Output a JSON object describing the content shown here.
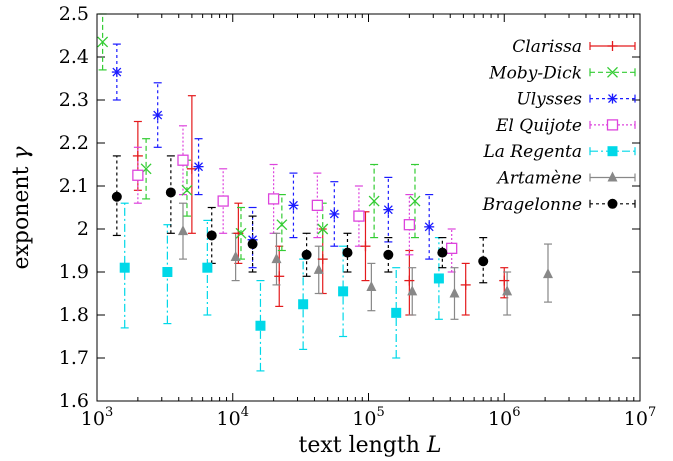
{
  "chart_data": {
    "type": "scatter",
    "x_scale": "log",
    "xlabel": "text length L",
    "ylabel": "exponent γ",
    "xlim": [
      1000,
      10000000
    ],
    "ylim": [
      1.6,
      2.5
    ],
    "y_ticks": [
      "1.6",
      "1.7",
      "1.8",
      "1.9",
      "2",
      "2.1",
      "2.2",
      "2.3",
      "2.4",
      "2.5"
    ],
    "x_ticks": [
      {
        "base": "10",
        "exp": "3"
      },
      {
        "base": "10",
        "exp": "4"
      },
      {
        "base": "10",
        "exp": "5"
      },
      {
        "base": "10",
        "exp": "6"
      },
      {
        "base": "10",
        "exp": "7"
      }
    ],
    "legend_position": "top-right",
    "series": [
      {
        "name": "Clarissa",
        "color": "#e41a1c",
        "marker": "plus",
        "dash": "",
        "points": [
          {
            "x": 2000,
            "y": 2.17,
            "lo": 2.09,
            "hi": 2.25
          },
          {
            "x": 5000,
            "y": 2.14,
            "lo": 1.99,
            "hi": 2.31
          },
          {
            "x": 11000,
            "y": 1.99,
            "lo": 1.92,
            "hi": 2.06
          },
          {
            "x": 22000,
            "y": 1.89,
            "lo": 1.82,
            "hi": 1.96
          },
          {
            "x": 46000,
            "y": 1.93,
            "lo": 1.85,
            "hi": 2.0
          },
          {
            "x": 95000,
            "y": 1.96,
            "lo": 1.88,
            "hi": 2.04
          },
          {
            "x": 200000,
            "y": 1.88,
            "lo": 1.8,
            "hi": 1.95
          },
          {
            "x": 520000,
            "y": 1.87,
            "lo": 1.8,
            "hi": 1.92
          },
          {
            "x": 1000000,
            "y": 1.88,
            "lo": 1.84,
            "hi": 1.91
          }
        ]
      },
      {
        "name": "Moby-Dick",
        "color": "#33cc33",
        "marker": "cross",
        "dash": "5,3",
        "points": [
          {
            "x": 1100,
            "y": 2.435,
            "lo": 2.37,
            "hi": 2.5
          },
          {
            "x": 2300,
            "y": 2.14,
            "lo": 2.07,
            "hi": 2.21
          },
          {
            "x": 4600,
            "y": 2.09,
            "lo": 2.03,
            "hi": 2.16
          },
          {
            "x": 11500,
            "y": 1.99,
            "lo": 1.93,
            "hi": 2.05
          },
          {
            "x": 23000,
            "y": 2.01,
            "lo": 1.95,
            "hi": 2.08
          },
          {
            "x": 46000,
            "y": 2.0,
            "lo": 1.93,
            "hi": 2.06
          },
          {
            "x": 110000,
            "y": 2.065,
            "lo": 1.98,
            "hi": 2.15
          },
          {
            "x": 220000,
            "y": 2.065,
            "lo": 1.98,
            "hi": 2.15
          }
        ]
      },
      {
        "name": "Ulysses",
        "color": "#1a1aff",
        "marker": "star",
        "dash": "3,3",
        "points": [
          {
            "x": 1400,
            "y": 2.365,
            "lo": 2.3,
            "hi": 2.43
          },
          {
            "x": 2800,
            "y": 2.265,
            "lo": 2.19,
            "hi": 2.34
          },
          {
            "x": 5600,
            "y": 2.145,
            "lo": 2.08,
            "hi": 2.21
          },
          {
            "x": 14000,
            "y": 1.975,
            "lo": 1.91,
            "hi": 2.05
          },
          {
            "x": 28000,
            "y": 2.055,
            "lo": 1.98,
            "hi": 2.13
          },
          {
            "x": 56000,
            "y": 2.035,
            "lo": 1.96,
            "hi": 2.11
          },
          {
            "x": 140000,
            "y": 2.045,
            "lo": 1.97,
            "hi": 2.12
          },
          {
            "x": 280000,
            "y": 2.005,
            "lo": 1.93,
            "hi": 2.08
          }
        ]
      },
      {
        "name": "El Quijote",
        "color": "#dd44dd",
        "marker": "square-open",
        "dash": "2,2",
        "points": [
          {
            "x": 2000,
            "y": 2.125,
            "lo": 2.06,
            "hi": 2.19
          },
          {
            "x": 4300,
            "y": 2.16,
            "lo": 2.08,
            "hi": 2.24
          },
          {
            "x": 8500,
            "y": 2.065,
            "lo": 1.99,
            "hi": 2.14
          },
          {
            "x": 20000,
            "y": 2.07,
            "lo": 1.99,
            "hi": 2.15
          },
          {
            "x": 42000,
            "y": 2.055,
            "lo": 1.98,
            "hi": 2.13
          },
          {
            "x": 85000,
            "y": 2.03,
            "lo": 1.96,
            "hi": 2.1
          },
          {
            "x": 200000,
            "y": 2.01,
            "lo": 1.94,
            "hi": 2.08
          },
          {
            "x": 410000,
            "y": 1.955,
            "lo": 1.9,
            "hi": 2.0
          }
        ]
      },
      {
        "name": "La Regenta",
        "color": "#00d8e8",
        "marker": "square-filled",
        "dash": "8,3,2,3",
        "points": [
          {
            "x": 1600,
            "y": 1.91,
            "lo": 1.77,
            "hi": 2.06
          },
          {
            "x": 3300,
            "y": 1.9,
            "lo": 1.78,
            "hi": 2.01
          },
          {
            "x": 6500,
            "y": 1.91,
            "lo": 1.8,
            "hi": 2.02
          },
          {
            "x": 16000,
            "y": 1.775,
            "lo": 1.67,
            "hi": 1.88
          },
          {
            "x": 33000,
            "y": 1.825,
            "lo": 1.72,
            "hi": 1.93
          },
          {
            "x": 65000,
            "y": 1.855,
            "lo": 1.75,
            "hi": 1.96
          },
          {
            "x": 160000,
            "y": 1.805,
            "lo": 1.7,
            "hi": 1.91
          },
          {
            "x": 330000,
            "y": 1.885,
            "lo": 1.79,
            "hi": 1.98
          }
        ]
      },
      {
        "name": "Artamène",
        "color": "#888888",
        "marker": "triangle",
        "dash": "",
        "points": [
          {
            "x": 4300,
            "y": 1.995,
            "lo": 1.93,
            "hi": 2.06
          },
          {
            "x": 10500,
            "y": 1.935,
            "lo": 1.88,
            "hi": 1.99
          },
          {
            "x": 21000,
            "y": 1.93,
            "lo": 1.87,
            "hi": 1.99
          },
          {
            "x": 43000,
            "y": 1.905,
            "lo": 1.85,
            "hi": 1.96
          },
          {
            "x": 105000,
            "y": 1.865,
            "lo": 1.81,
            "hi": 1.92
          },
          {
            "x": 210000,
            "y": 1.855,
            "lo": 1.8,
            "hi": 1.91
          },
          {
            "x": 430000,
            "y": 1.85,
            "lo": 1.79,
            "hi": 1.91
          },
          {
            "x": 1050000,
            "y": 1.855,
            "lo": 1.8,
            "hi": 1.9
          },
          {
            "x": 2100000,
            "y": 1.895,
            "lo": 1.83,
            "hi": 1.965
          }
        ]
      },
      {
        "name": "Bragelonne",
        "color": "#000000",
        "marker": "circle",
        "dash": "3,3",
        "points": [
          {
            "x": 1400,
            "y": 2.075,
            "lo": 1.985,
            "hi": 2.17
          },
          {
            "x": 3500,
            "y": 2.085,
            "lo": 1.99,
            "hi": 2.17
          },
          {
            "x": 7000,
            "y": 1.985,
            "lo": 1.92,
            "hi": 2.05
          },
          {
            "x": 14000,
            "y": 1.965,
            "lo": 1.9,
            "hi": 2.03
          },
          {
            "x": 35000,
            "y": 1.94,
            "lo": 1.89,
            "hi": 1.99
          },
          {
            "x": 70000,
            "y": 1.945,
            "lo": 1.9,
            "hi": 1.99
          },
          {
            "x": 140000,
            "y": 1.94,
            "lo": 1.9,
            "hi": 1.98
          },
          {
            "x": 350000,
            "y": 1.945,
            "lo": 1.91,
            "hi": 1.98
          },
          {
            "x": 700000,
            "y": 1.925,
            "lo": 1.875,
            "hi": 1.98
          }
        ]
      }
    ]
  }
}
